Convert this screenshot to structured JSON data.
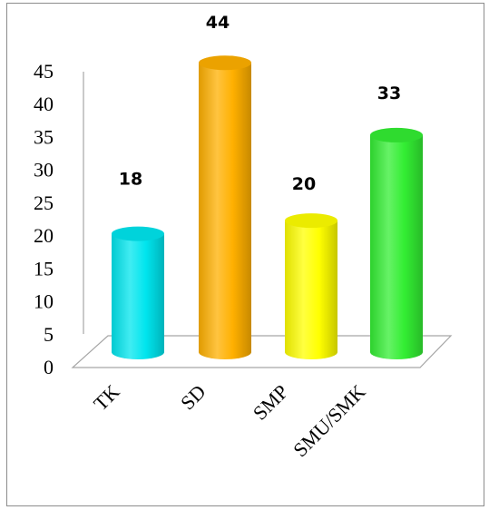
{
  "chart_data": {
    "type": "bar",
    "categories": [
      "TK",
      "SD",
      "SMP",
      "SMU/SMK"
    ],
    "values": [
      18,
      44,
      20,
      33
    ],
    "data_labels": [
      "18",
      "44",
      "20",
      "33"
    ],
    "colors": [
      "#00e5ee",
      "#ffb000",
      "#ffff00",
      "#33ee33"
    ],
    "yticks": [
      "0",
      "5",
      "10",
      "15",
      "20",
      "25",
      "30",
      "35",
      "40",
      "45"
    ],
    "ylim": [
      0,
      45
    ],
    "grid": false,
    "legend": "none",
    "style": "3d-cylinder"
  }
}
